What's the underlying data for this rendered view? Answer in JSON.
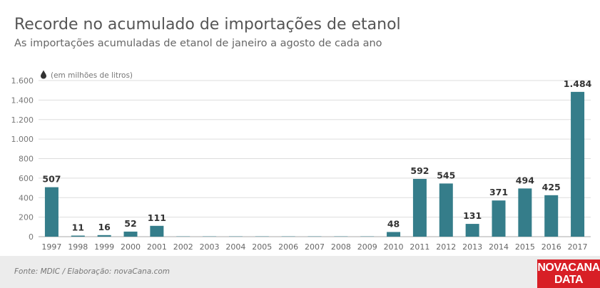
{
  "header": {
    "title": "Recorde no acumulado de importações de etanol",
    "subtitle": "As importações acumuladas de etanol de janeiro a agosto de cada ano"
  },
  "footer": {
    "source": "Fonte: MDIC / Elaboração: novaCana.com",
    "logo_line1": "NOVACANA",
    "logo_line2": "DATA"
  },
  "colors": {
    "bar": "#357d8a",
    "grid": "#dddddd",
    "axis": "#aaaaaa",
    "logo": "#d81f26"
  },
  "icons": {
    "unit": "drop-icon"
  },
  "chart_data": {
    "type": "bar",
    "unit_label": "(em milhões de litros)",
    "categories": [
      "1997",
      "1998",
      "1999",
      "2000",
      "2001",
      "2002",
      "2003",
      "2004",
      "2005",
      "2006",
      "2007",
      "2008",
      "2009",
      "2010",
      "2011",
      "2012",
      "2013",
      "2014",
      "2015",
      "2016",
      "2017"
    ],
    "values": [
      507,
      11,
      16,
      52,
      111,
      3,
      3,
      3,
      3,
      3,
      3,
      3,
      3,
      48,
      592,
      545,
      131,
      371,
      494,
      425,
      1484
    ],
    "data_labels": [
      "507",
      "11",
      "16",
      "52",
      "111",
      "",
      "",
      "",
      "",
      "",
      "",
      "",
      "",
      "48",
      "592",
      "545",
      "131",
      "371",
      "494",
      "425",
      "1.484"
    ],
    "yticks": [
      0,
      200,
      400,
      600,
      800,
      1000,
      1200,
      1400,
      1600
    ],
    "ytick_labels": [
      "0",
      "200",
      "400",
      "600",
      "800",
      "1.000",
      "1.200",
      "1.400",
      "1.600"
    ],
    "ylim": [
      0,
      1600
    ],
    "grid": true,
    "legend": "none"
  }
}
